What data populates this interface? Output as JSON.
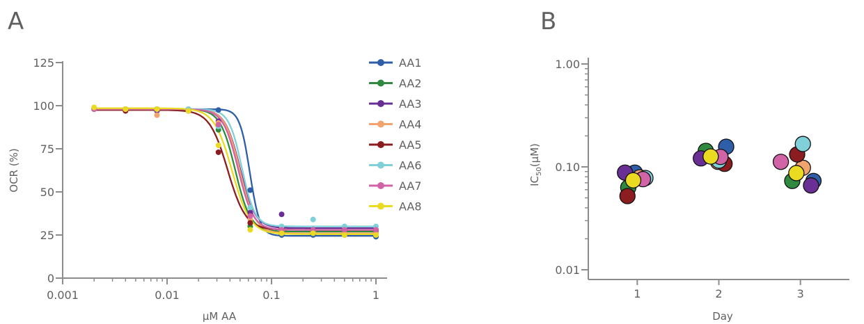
{
  "panel_a_letter": "A",
  "panel_b_letter": "B",
  "colors": {
    "AA1": "#2e5ea8",
    "AA2": "#2f8a3f",
    "AA3": "#6a2f95",
    "AA4": "#f2a46e",
    "AA5": "#8b1c1f",
    "AA6": "#7fd0d8",
    "AA7": "#d163a7",
    "AA8": "#eadb22"
  },
  "chart_data": [
    {
      "type": "line",
      "panel": "A",
      "xlabel": "µM AA",
      "ylabel": "OCR (%)",
      "xscale": "log",
      "xlim": [
        0.001,
        1
      ],
      "ylim": [
        0,
        125
      ],
      "xticks": [
        "0.001",
        "0.01",
        "0.1",
        "1"
      ],
      "yticks": [
        "0",
        "25",
        "50",
        "75",
        "100",
        "125"
      ],
      "x": [
        0.002,
        0.004,
        0.008,
        0.016,
        0.031,
        0.0625,
        0.125,
        0.25,
        0.5,
        1.0
      ],
      "legend_position": "right",
      "series": [
        {
          "name": "AA1",
          "ic50": 0.062,
          "top": 98,
          "bottom": 24.5,
          "hill": 9,
          "values": [
            98,
            98,
            98,
            98,
            97.5,
            51,
            25,
            25,
            25,
            24
          ]
        },
        {
          "name": "AA2",
          "ic50": 0.045,
          "top": 98,
          "bottom": 27,
          "hill": 6,
          "values": [
            98,
            98,
            98,
            97,
            86,
            30,
            27,
            27,
            27,
            27
          ]
        },
        {
          "name": "AA3",
          "ic50": 0.05,
          "top": 98,
          "bottom": 29,
          "hill": 6,
          "values": [
            98,
            97,
            97,
            97,
            91,
            38,
            37,
            28,
            28,
            28
          ]
        },
        {
          "name": "AA4",
          "ic50": 0.05,
          "top": 98,
          "bottom": 26,
          "hill": 6,
          "values": [
            98,
            98,
            94.5,
            97,
            90,
            34,
            27,
            27,
            26,
            26
          ]
        },
        {
          "name": "AA5",
          "ic50": 0.038,
          "top": 97.5,
          "bottom": 28,
          "hill": 5,
          "values": [
            98,
            97,
            98,
            97,
            73,
            32,
            29,
            28,
            28,
            28
          ]
        },
        {
          "name": "AA6",
          "ic50": 0.052,
          "top": 98,
          "bottom": 30,
          "hill": 7,
          "values": [
            98,
            98,
            98,
            98,
            88,
            41,
            30,
            34,
            30,
            30
          ]
        },
        {
          "name": "AA7",
          "ic50": 0.048,
          "top": 98,
          "bottom": 28,
          "hill": 6,
          "values": [
            98,
            98,
            98,
            97,
            89,
            36,
            28,
            28,
            28,
            28
          ]
        },
        {
          "name": "AA8",
          "ic50": 0.042,
          "top": 98.5,
          "bottom": 25.5,
          "hill": 5,
          "values": [
            99,
            98,
            98,
            97,
            77,
            28,
            26,
            26,
            25,
            25
          ]
        }
      ]
    },
    {
      "type": "scatter",
      "panel": "B",
      "xlabel": "Day",
      "ylabel_main": "IC",
      "ylabel_sub": "50",
      "ylabel_unit": "(µM)",
      "yscale": "log",
      "ylim": [
        0.01,
        1.0
      ],
      "xlim": [
        0.4,
        3.6
      ],
      "xticks": [
        "1",
        "2",
        "3"
      ],
      "yticks": [
        "0.01",
        "0.10",
        "1.00"
      ],
      "points": [
        {
          "day": 0.97,
          "value": 0.088,
          "series": "AA1"
        },
        {
          "day": 0.89,
          "value": 0.063,
          "series": "AA2"
        },
        {
          "day": 0.85,
          "value": 0.088,
          "series": "AA3"
        },
        {
          "day": 1.03,
          "value": 0.079,
          "series": "AA4"
        },
        {
          "day": 0.88,
          "value": 0.052,
          "series": "AA5"
        },
        {
          "day": 1.1,
          "value": 0.078,
          "series": "AA6"
        },
        {
          "day": 1.07,
          "value": 0.076,
          "series": "AA7"
        },
        {
          "day": 0.95,
          "value": 0.074,
          "series": "AA8"
        },
        {
          "day": 2.09,
          "value": 0.157,
          "series": "AA1"
        },
        {
          "day": 1.84,
          "value": 0.143,
          "series": "AA2"
        },
        {
          "day": 1.78,
          "value": 0.121,
          "series": "AA3"
        },
        {
          "day": 1.99,
          "value": 0.112,
          "series": "AA4"
        },
        {
          "day": 2.07,
          "value": 0.107,
          "series": "AA5"
        },
        {
          "day": 2.0,
          "value": 0.115,
          "series": "AA6"
        },
        {
          "day": 2.02,
          "value": 0.125,
          "series": "AA7"
        },
        {
          "day": 1.9,
          "value": 0.126,
          "series": "AA8"
        },
        {
          "day": 3.16,
          "value": 0.073,
          "series": "AA1"
        },
        {
          "day": 2.9,
          "value": 0.073,
          "series": "AA2"
        },
        {
          "day": 3.13,
          "value": 0.066,
          "series": "AA3"
        },
        {
          "day": 3.03,
          "value": 0.098,
          "series": "AA4"
        },
        {
          "day": 2.96,
          "value": 0.132,
          "series": "AA5"
        },
        {
          "day": 3.03,
          "value": 0.167,
          "series": "AA6"
        },
        {
          "day": 2.76,
          "value": 0.112,
          "series": "AA7"
        },
        {
          "day": 2.95,
          "value": 0.087,
          "series": "AA8"
        }
      ]
    }
  ]
}
